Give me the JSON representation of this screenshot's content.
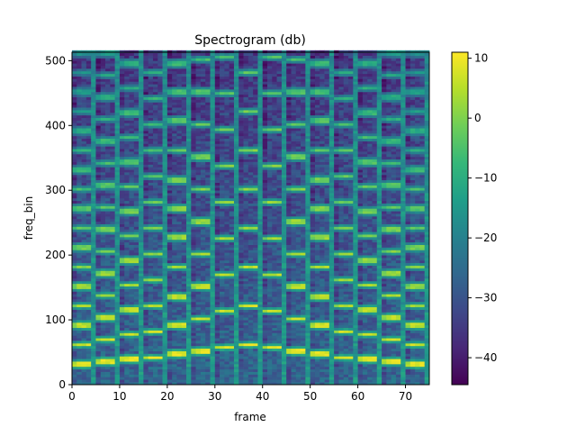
{
  "chart_data": {
    "type": "heatmap",
    "title": "Spectrogram (db)",
    "xlabel": "frame",
    "ylabel": "freq_bin",
    "xlim": [
      0,
      75
    ],
    "ylim": [
      0,
      513
    ],
    "xticks": [
      0,
      10,
      20,
      30,
      40,
      50,
      60,
      70
    ],
    "yticks": [
      0,
      100,
      200,
      300,
      400,
      500
    ],
    "colorbar": {
      "range": [
        -44.5,
        11
      ],
      "ticks": [
        10,
        0,
        -10,
        -20,
        -30,
        -40
      ],
      "tick_labels": [
        "10",
        "0",
        "−10",
        "−20",
        "−30",
        "−40"
      ],
      "colormap": "viridis"
    },
    "notes": {
      "segment_frames": 5,
      "segment_count": 15,
      "fundamental_hz_bins": [
        30,
        34,
        38,
        40,
        45,
        50,
        56,
        60,
        56,
        50,
        45,
        40,
        38,
        34,
        30
      ],
      "gap_width_frames": 1,
      "background_db": -26,
      "harmonic_peak_db": 10,
      "gap_level_db": -15
    }
  },
  "colors": {
    "viridis": [
      "#440154",
      "#482878",
      "#3e4989",
      "#31688e",
      "#26828e",
      "#1f9e89",
      "#35b779",
      "#6ece58",
      "#b5de2b",
      "#fde725"
    ]
  }
}
